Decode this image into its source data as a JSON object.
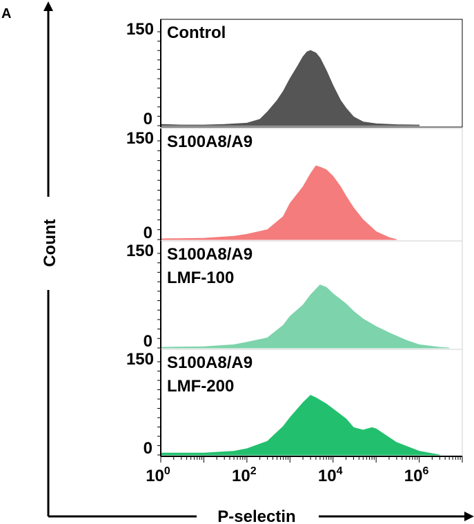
{
  "panel_label": "A",
  "y_axis_title": "Count",
  "x_axis_title": "P-selectin",
  "chart_data": {
    "type": "area",
    "x_scale": "log10",
    "x_range": [
      1,
      10000000
    ],
    "x_tick_labels": [
      {
        "value": 1,
        "base": "10",
        "exp": "0"
      },
      {
        "value": 100,
        "base": "10",
        "exp": "2"
      },
      {
        "value": 10000,
        "base": "10",
        "exp": "4"
      },
      {
        "value": 1000000,
        "base": "10",
        "exp": "6"
      }
    ],
    "xlabel": "P-selectin",
    "ylabel": "Count",
    "y_range": [
      0,
      150
    ],
    "panels": [
      {
        "label_lines": [
          "Control"
        ],
        "color": "#555555",
        "y_max_label": "150",
        "y_min_label": "0",
        "x": [
          1,
          3,
          10,
          30,
          100,
          200,
          300,
          500,
          700,
          1000,
          1500,
          2000,
          2500,
          3000,
          4000,
          5000,
          7000,
          10000,
          15000,
          20000,
          30000,
          50000,
          100000,
          300000,
          1000000
        ],
        "y": [
          2,
          1,
          1,
          2,
          4,
          10,
          22,
          40,
          55,
          75,
          95,
          110,
          118,
          120,
          116,
          108,
          88,
          64,
          40,
          28,
          14,
          6,
          3,
          1.5,
          1
        ]
      },
      {
        "label_lines": [
          "S100A8/A9"
        ],
        "color": "#f47c7c",
        "y_max_label": "150",
        "y_min_label": "0",
        "x": [
          1,
          10,
          50,
          100,
          300,
          700,
          1000,
          2000,
          3000,
          4000,
          5000,
          7000,
          10000,
          15000,
          20000,
          30000,
          50000,
          100000,
          200000,
          300000
        ],
        "y": [
          1,
          2,
          5,
          8,
          15,
          35,
          55,
          80,
          100,
          112,
          110,
          106,
          96,
          80,
          66,
          48,
          30,
          12,
          3,
          0
        ]
      },
      {
        "label_lines": [
          "S100A8/A9",
          "LMF-100"
        ],
        "color": "#7dd3ab",
        "y_max_label": "150",
        "y_min_label": "0",
        "x": [
          1,
          10,
          50,
          100,
          300,
          700,
          1000,
          2000,
          3000,
          5000,
          7000,
          10000,
          20000,
          30000,
          50000,
          100000,
          200000,
          500000,
          1000000,
          3000000,
          5000000
        ],
        "y": [
          1,
          2,
          5,
          9,
          16,
          36,
          50,
          68,
          84,
          100,
          96,
          86,
          70,
          58,
          46,
          34,
          24,
          12,
          5,
          1,
          0
        ]
      },
      {
        "label_lines": [
          "S100A8/A9",
          "LMF-200"
        ],
        "color": "#22c06e",
        "y_max_label": "150",
        "y_min_label": "0",
        "x": [
          1,
          10,
          50,
          100,
          300,
          700,
          1000,
          2000,
          3000,
          4000,
          7000,
          10000,
          20000,
          30000,
          50000,
          80000,
          100000,
          200000,
          300000,
          1000000,
          3000000
        ],
        "y": [
          3,
          3,
          6,
          10,
          22,
          46,
          60,
          84,
          96,
          92,
          82,
          74,
          58,
          44,
          40,
          44,
          42,
          28,
          20,
          6,
          0
        ]
      }
    ]
  }
}
